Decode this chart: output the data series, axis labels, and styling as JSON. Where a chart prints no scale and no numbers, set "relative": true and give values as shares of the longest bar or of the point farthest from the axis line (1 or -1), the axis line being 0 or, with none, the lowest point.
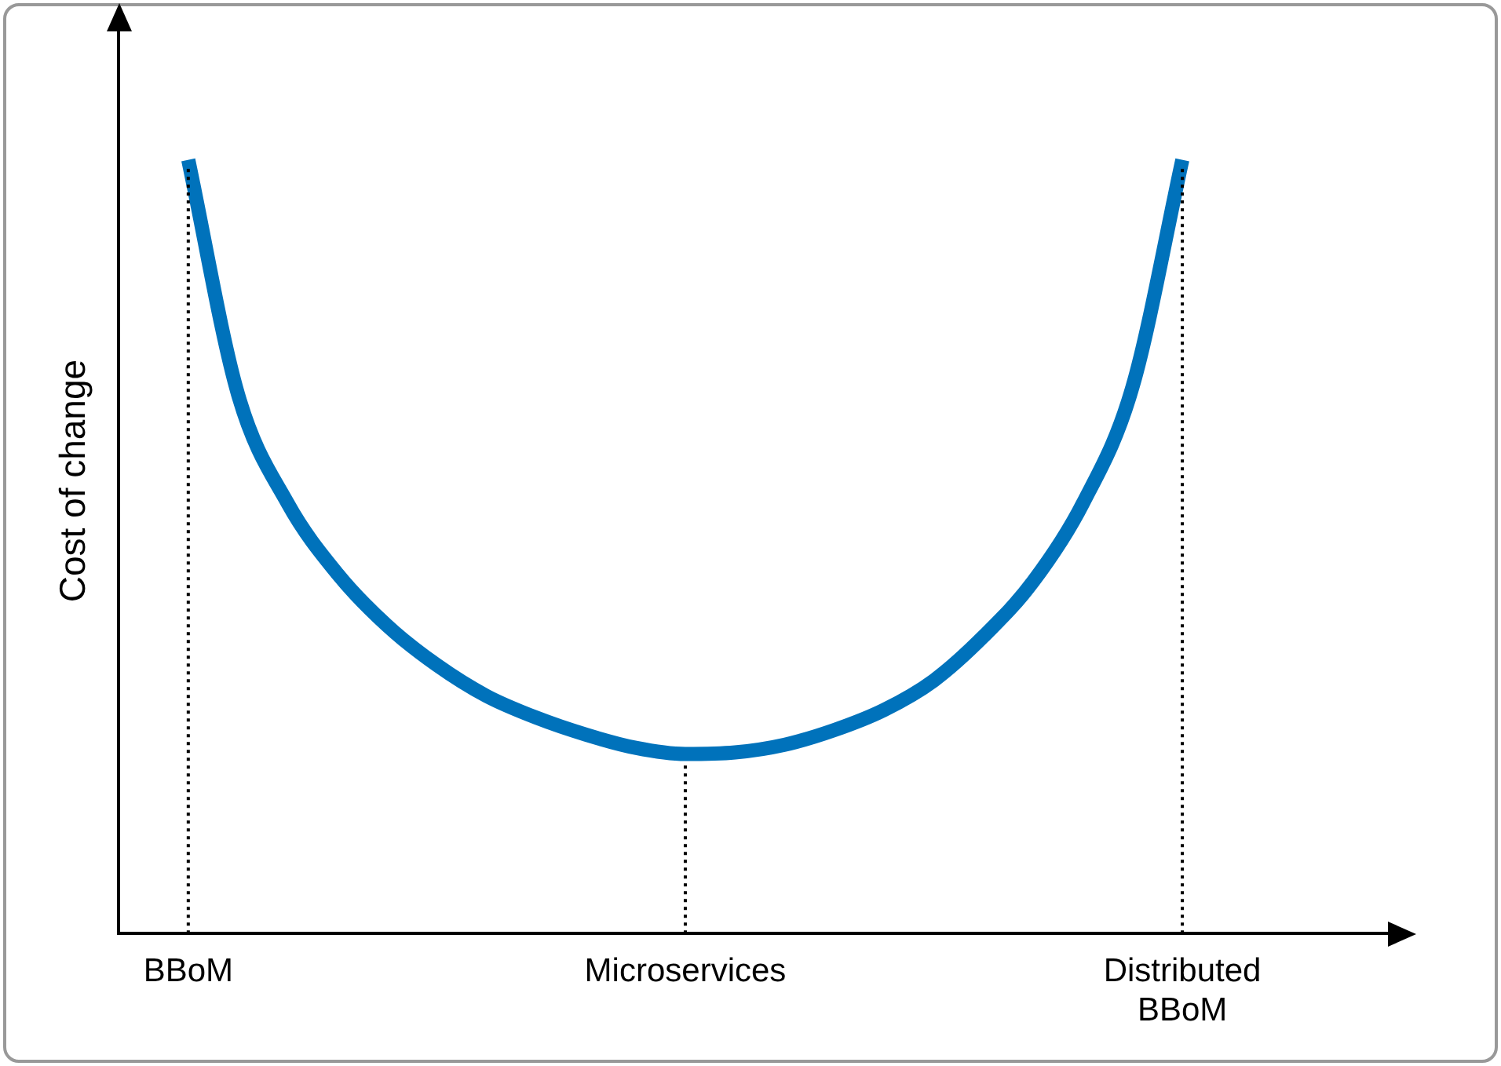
{
  "chart_data": {
    "type": "line",
    "relative": true,
    "ylabel": "Cost of change",
    "categories": [
      "BBoM",
      null,
      null,
      null,
      null,
      null,
      null,
      null,
      null,
      null,
      "Microservices",
      null,
      null,
      null,
      null,
      null,
      null,
      null,
      null,
      null,
      "Distributed BBoM"
    ],
    "series": [
      {
        "color": "#0072bb",
        "values": [
          1,
          0.697,
          0.556,
          0.465,
          0.398,
          0.347,
          0.307,
          0.279,
          0.257,
          0.24,
          0.232,
          0.234,
          0.244,
          0.263,
          0.289,
          0.327,
          0.384,
          0.455,
          0.556,
          0.707,
          1
        ]
      }
    ],
    "ref_lines": [
      {
        "axis": "x",
        "value": "BBoM",
        "line_style": "dotted",
        "color": "#000000"
      },
      {
        "axis": "x",
        "value": "Microservices",
        "line_style": "dotted",
        "color": "#000000"
      },
      {
        "axis": "x",
        "value": "Distributed BBoM",
        "line_style": "dotted",
        "color": "#000000"
      }
    ],
    "grid": false,
    "legend": false,
    "marker": "none",
    "line_style": "solid"
  }
}
